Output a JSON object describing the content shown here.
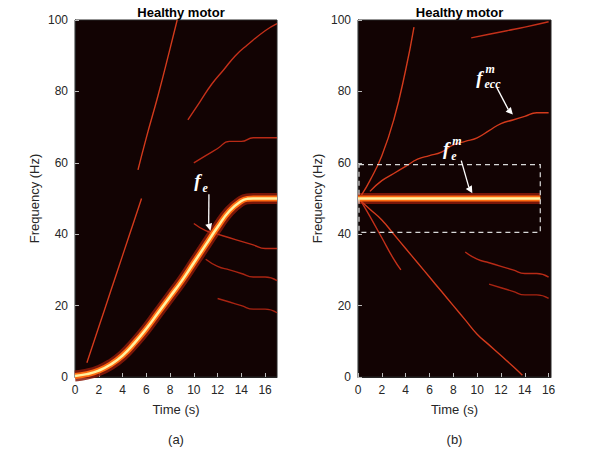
{
  "chart_data": [
    {
      "type": "line",
      "title": "Healthy motor",
      "caption": "(a)",
      "xlabel": "Time (s)",
      "ylabel": "Frequency (Hz)",
      "xlim": [
        0,
        17
      ],
      "xticks": [
        0,
        2,
        4,
        6,
        8,
        10,
        12,
        14,
        16
      ],
      "ylim": [
        0,
        100
      ],
      "yticks": [
        0,
        20,
        40,
        60,
        80,
        100
      ],
      "series": [
        {
          "x": [
            0,
            1,
            2,
            3,
            4,
            5,
            6,
            7,
            8,
            9,
            10,
            11,
            12,
            13,
            14,
            14.5,
            15,
            16,
            17
          ],
          "values": [
            0.3,
            0.8,
            1.8,
            3.5,
            6,
            9.5,
            13.5,
            18,
            22.5,
            27,
            32,
            37,
            42,
            46.5,
            49.3,
            49.9,
            50,
            50,
            50
          ],
          "color": "#fff2a0",
          "line_style": "glow"
        },
        {
          "x": [
            1,
            2,
            3,
            4,
            5,
            5.6
          ],
          "values": [
            4,
            14,
            24,
            34,
            44,
            50
          ],
          "color": "#d23a1c",
          "line_style": "solid"
        },
        {
          "x": [
            5.3,
            6,
            7,
            8,
            8.6
          ],
          "values": [
            58,
            67,
            79,
            92,
            100
          ],
          "color": "#d23a1c",
          "line_style": "solid"
        },
        {
          "x": [
            9.5,
            10.5,
            11.5,
            12.5,
            13.5,
            14.5,
            16,
            17
          ],
          "values": [
            72,
            77,
            82,
            86,
            90,
            93,
            97,
            99
          ],
          "color": "#c4301a",
          "line_style": "solid"
        },
        {
          "x": [
            10,
            11,
            12,
            13,
            14,
            15,
            16,
            17
          ],
          "values": [
            60,
            62,
            64,
            66,
            66,
            67,
            67,
            67
          ],
          "color": "#b82a16",
          "line_style": "solid"
        },
        {
          "x": [
            10,
            11,
            12,
            13,
            14,
            15,
            16,
            17
          ],
          "values": [
            43,
            41,
            40,
            39,
            38,
            37,
            36,
            36
          ],
          "color": "#b82a16",
          "line_style": "solid"
        },
        {
          "x": [
            11,
            12,
            13,
            14,
            15,
            16,
            17
          ],
          "values": [
            33,
            31,
            30,
            29,
            28,
            28,
            27
          ],
          "color": "#a82412",
          "line_style": "solid"
        },
        {
          "x": [
            12,
            13,
            14,
            15,
            16,
            17
          ],
          "values": [
            22,
            21,
            20,
            19,
            19,
            18
          ],
          "color": "#a82412",
          "line_style": "solid"
        }
      ],
      "annotations": [
        {
          "text": "f",
          "subscript": "e",
          "at": [
            10.3,
            55
          ],
          "points_to": [
            11.4,
            41
          ]
        }
      ]
    },
    {
      "type": "line",
      "title": "Healthy motor",
      "caption": "(b)",
      "xlabel": "Time (s)",
      "ylabel": "Frequency (Hz)",
      "xlim": [
        0,
        16.2
      ],
      "xticks": [
        0,
        2,
        4,
        6,
        8,
        10,
        12,
        14,
        16
      ],
      "ylim": [
        0,
        100
      ],
      "yticks": [
        0,
        20,
        40,
        60,
        80,
        100
      ],
      "series": [
        {
          "x": [
            0,
            2,
            4,
            6,
            8,
            10,
            12,
            14,
            15.3
          ],
          "values": [
            50,
            50,
            50,
            50,
            50,
            50,
            50,
            50,
            50
          ],
          "color": "#fff2a0",
          "line_style": "glow"
        },
        {
          "x": [
            0.3,
            1,
            2,
            3,
            4,
            4.7
          ],
          "values": [
            51,
            55,
            62,
            72,
            86,
            98
          ],
          "color": "#d23a1c",
          "line_style": "solid"
        },
        {
          "x": [
            1,
            2,
            3,
            4,
            5,
            6,
            7,
            8,
            9,
            10,
            11,
            12,
            13,
            14,
            15,
            16
          ],
          "values": [
            52,
            55,
            57,
            59,
            61,
            62,
            63,
            65,
            66,
            67,
            69,
            71,
            72,
            73,
            74,
            74
          ],
          "color": "#d23a1c",
          "line_style": "solid"
        },
        {
          "x": [
            0,
            1,
            2,
            3,
            4,
            5,
            6,
            7,
            8,
            9,
            10,
            11,
            12,
            13,
            13.8
          ],
          "values": [
            50,
            47,
            44,
            40,
            36,
            32,
            28,
            24,
            20,
            16,
            12,
            9,
            6,
            3,
            0.5
          ],
          "color": "#d23a1c",
          "line_style": "solid"
        },
        {
          "x": [
            0.3,
            1,
            2,
            3,
            3.6
          ],
          "values": [
            49,
            45,
            39,
            33,
            30
          ],
          "color": "#c4301a",
          "line_style": "solid"
        },
        {
          "x": [
            9,
            10,
            11,
            12,
            13,
            14,
            15,
            16
          ],
          "values": [
            35,
            33,
            32,
            31,
            30,
            29,
            29,
            28
          ],
          "color": "#b82a16",
          "line_style": "solid"
        },
        {
          "x": [
            11,
            12,
            13,
            14,
            15,
            16
          ],
          "values": [
            26,
            25,
            24,
            23,
            23,
            22
          ],
          "color": "#a82412",
          "line_style": "solid"
        },
        {
          "x": [
            9.5,
            11,
            12.5,
            14,
            16
          ],
          "values": [
            95,
            96,
            97,
            98,
            99.5
          ],
          "color": "#c4301a",
          "line_style": "solid"
        }
      ],
      "annotations": [
        {
          "text": "f",
          "subscript": "e",
          "superscript": "m",
          "at": [
            7.4,
            64
          ],
          "points_to": [
            9.6,
            51.5
          ]
        },
        {
          "text": "f",
          "subscript": "ecc",
          "superscript": "m",
          "at": [
            10.2,
            84
          ],
          "points_to": [
            13,
            73.5
          ]
        }
      ],
      "highlight_box": {
        "x": [
          0,
          15.3
        ],
        "y": [
          40.5,
          59.5
        ]
      }
    }
  ]
}
